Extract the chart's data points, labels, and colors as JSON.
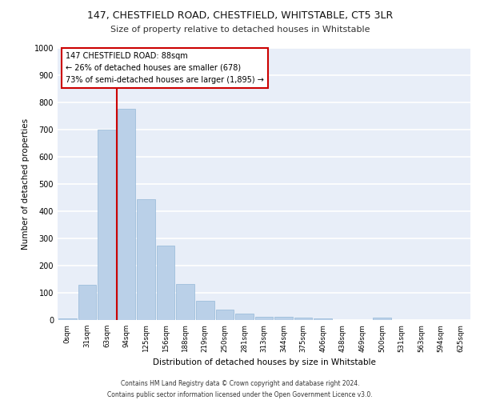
{
  "title1": "147, CHESTFIELD ROAD, CHESTFIELD, WHITSTABLE, CT5 3LR",
  "title2": "Size of property relative to detached houses in Whitstable",
  "xlabel": "Distribution of detached houses by size in Whitstable",
  "ylabel": "Number of detached properties",
  "categories": [
    "0sqm",
    "31sqm",
    "63sqm",
    "94sqm",
    "125sqm",
    "156sqm",
    "188sqm",
    "219sqm",
    "250sqm",
    "281sqm",
    "313sqm",
    "344sqm",
    "375sqm",
    "406sqm",
    "438sqm",
    "469sqm",
    "500sqm",
    "531sqm",
    "563sqm",
    "594sqm",
    "625sqm"
  ],
  "bar_values": [
    7,
    128,
    700,
    775,
    445,
    275,
    133,
    70,
    37,
    23,
    13,
    11,
    10,
    5,
    0,
    0,
    8,
    0,
    0,
    0,
    0
  ],
  "bar_color": "#bad0e8",
  "bar_edge_color": "#95b8d8",
  "background_color": "#e8eef8",
  "grid_color": "#ffffff",
  "annotation_line1": "147 CHESTFIELD ROAD: 88sqm",
  "annotation_line2": "← 26% of detached houses are smaller (678)",
  "annotation_line3": "73% of semi-detached houses are larger (1,895) →",
  "annotation_box_color": "#cc0000",
  "vline_color": "#cc0000",
  "vline_x_index": 2.5,
  "ylim": [
    0,
    1000
  ],
  "yticks": [
    0,
    100,
    200,
    300,
    400,
    500,
    600,
    700,
    800,
    900,
    1000
  ],
  "footer1": "Contains HM Land Registry data © Crown copyright and database right 2024.",
  "footer2": "Contains public sector information licensed under the Open Government Licence v3.0."
}
